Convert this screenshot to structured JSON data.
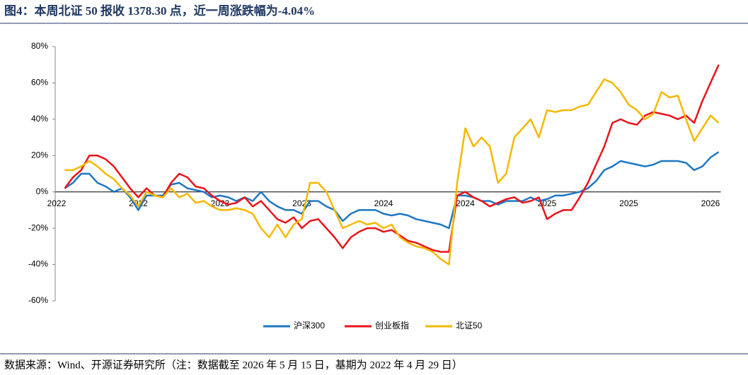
{
  "chart_data": {
    "type": "line",
    "title": "图4：本周北证 50 报收 1378.30 点，近一周涨跌幅为-4.04%",
    "source": "数据来源：Wind、开源证券研究所（注：数据截至 2026 年 5 月 15 日，基期为 2022 年 4 月 29 日）",
    "categories": [
      "2022",
      null,
      null,
      null,
      null,
      null,
      null,
      null,
      null,
      null,
      "2022",
      null,
      null,
      null,
      null,
      null,
      null,
      null,
      null,
      null,
      "2023",
      null,
      null,
      null,
      null,
      null,
      null,
      null,
      null,
      null,
      "2023",
      null,
      null,
      null,
      null,
      null,
      null,
      null,
      null,
      null,
      "2024",
      null,
      null,
      null,
      null,
      null,
      null,
      null,
      null,
      null,
      "2024",
      null,
      null,
      null,
      null,
      null,
      null,
      null,
      null,
      null,
      "2025",
      null,
      null,
      null,
      null,
      null,
      null,
      null,
      null,
      null,
      "2025",
      null,
      null,
      null,
      null,
      null,
      null,
      null,
      null,
      null,
      "2026",
      null
    ],
    "ylim": [
      -60,
      80
    ],
    "yticks": [
      {
        "value": -60,
        "label": "-60%"
      },
      {
        "value": -40,
        "label": "-40%"
      },
      {
        "value": -20,
        "label": "-20%"
      },
      {
        "value": 0,
        "label": "0%"
      },
      {
        "value": 20,
        "label": "20%"
      },
      {
        "value": 40,
        "label": "40%"
      },
      {
        "value": 60,
        "label": "60%"
      },
      {
        "value": 80,
        "label": "80%"
      }
    ],
    "legend": "bottom",
    "series": [
      {
        "name": "沪深300",
        "color": "#1f77c4",
        "values": [
          null,
          2,
          5,
          10,
          10,
          5,
          3,
          0,
          2,
          -3,
          -10,
          -2,
          -2,
          -2,
          4,
          5,
          2,
          1,
          0,
          -3,
          -2,
          -3,
          -5,
          -3,
          -5,
          0,
          -5,
          -8,
          -10,
          -10,
          -12,
          -5,
          -5,
          -8,
          -10,
          -16,
          -12,
          -10,
          -10,
          -10,
          -12,
          -13,
          -12,
          -13,
          -15,
          -16,
          -17,
          -18,
          -20,
          -2,
          -2,
          -3,
          -5,
          -5,
          -7,
          -5,
          -5,
          -5,
          -3,
          -5,
          -4,
          -2,
          -2,
          -1,
          0,
          2,
          6,
          12,
          14,
          17,
          16,
          15,
          14,
          15,
          17,
          17,
          17,
          16,
          12,
          14,
          19,
          22
        ]
      },
      {
        "name": "创业板指",
        "color": "#e8141b",
        "values": [
          null,
          2,
          8,
          12,
          20,
          20,
          18,
          14,
          8,
          2,
          -3,
          2,
          -2,
          -3,
          5,
          10,
          8,
          3,
          2,
          -2,
          -5,
          -7,
          -6,
          -3,
          -8,
          -5,
          -10,
          -15,
          -17,
          -14,
          -20,
          -16,
          -15,
          -20,
          -25,
          -31,
          -25,
          -22,
          -20,
          -20,
          -22,
          -21,
          -24,
          -27,
          -28,
          -30,
          -32,
          -33,
          -33,
          -2,
          0,
          -3,
          -5,
          -8,
          -6,
          -4,
          -3,
          -6,
          -5,
          -3,
          -15,
          -12,
          -10,
          -10,
          -3,
          5,
          15,
          25,
          38,
          40,
          38,
          37,
          42,
          44,
          43,
          42,
          40,
          42,
          38,
          50,
          60,
          70
        ]
      },
      {
        "name": "北证50",
        "color": "#f5b800",
        "values": [
          null,
          12,
          12,
          14,
          17,
          14,
          10,
          7,
          2,
          -2,
          -8,
          0,
          -2,
          -3,
          2,
          -3,
          -1,
          -6,
          -5,
          -8,
          -10,
          -10,
          -9,
          -10,
          -12,
          -20,
          -25,
          -18,
          -25,
          -18,
          -15,
          5,
          5,
          0,
          -10,
          -20,
          -18,
          -16,
          -18,
          -17,
          -20,
          -18,
          -25,
          -28,
          -30,
          -31,
          -33,
          -37,
          -40,
          5,
          35,
          25,
          30,
          25,
          5,
          10,
          30,
          35,
          40,
          30,
          45,
          44,
          45,
          45,
          47,
          48,
          55,
          62,
          60,
          55,
          48,
          45,
          40,
          43,
          55,
          52,
          53,
          40,
          28,
          35,
          42,
          38
        ]
      }
    ]
  }
}
